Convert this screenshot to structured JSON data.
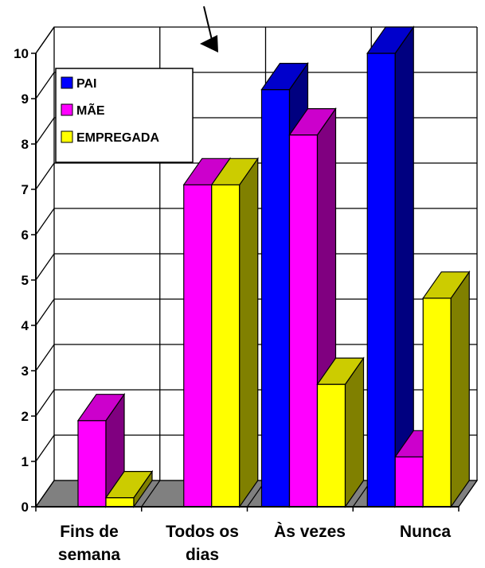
{
  "chart_data": {
    "type": "bar",
    "categories": [
      [
        "Fins de",
        "semana"
      ],
      [
        "Todos os",
        "dias"
      ],
      [
        "Às vezes"
      ],
      [
        "Nunca"
      ]
    ],
    "series": [
      {
        "name": "PAI",
        "values": [
          0,
          0,
          9.2,
          10
        ],
        "color": "#0000FF",
        "side_color": "#000080",
        "top_color": "#0000CC"
      },
      {
        "name": "MÃE",
        "values": [
          1.9,
          7.1,
          8.2,
          1.1
        ],
        "color": "#FF00FF",
        "side_color": "#800080",
        "top_color": "#CC00CC"
      },
      {
        "name": "EMPREGADA",
        "values": [
          0.2,
          7.1,
          2.7,
          4.6
        ],
        "color": "#FFFF00",
        "side_color": "#808000",
        "top_color": "#CCCC00"
      }
    ],
    "yticks": [
      "0",
      "1",
      "2",
      "3",
      "4",
      "5",
      "6",
      "7",
      "8",
      "9",
      "10"
    ],
    "ylim": [
      0,
      10
    ],
    "grid": true,
    "legend": "top-left",
    "floor_color": "#808080"
  }
}
